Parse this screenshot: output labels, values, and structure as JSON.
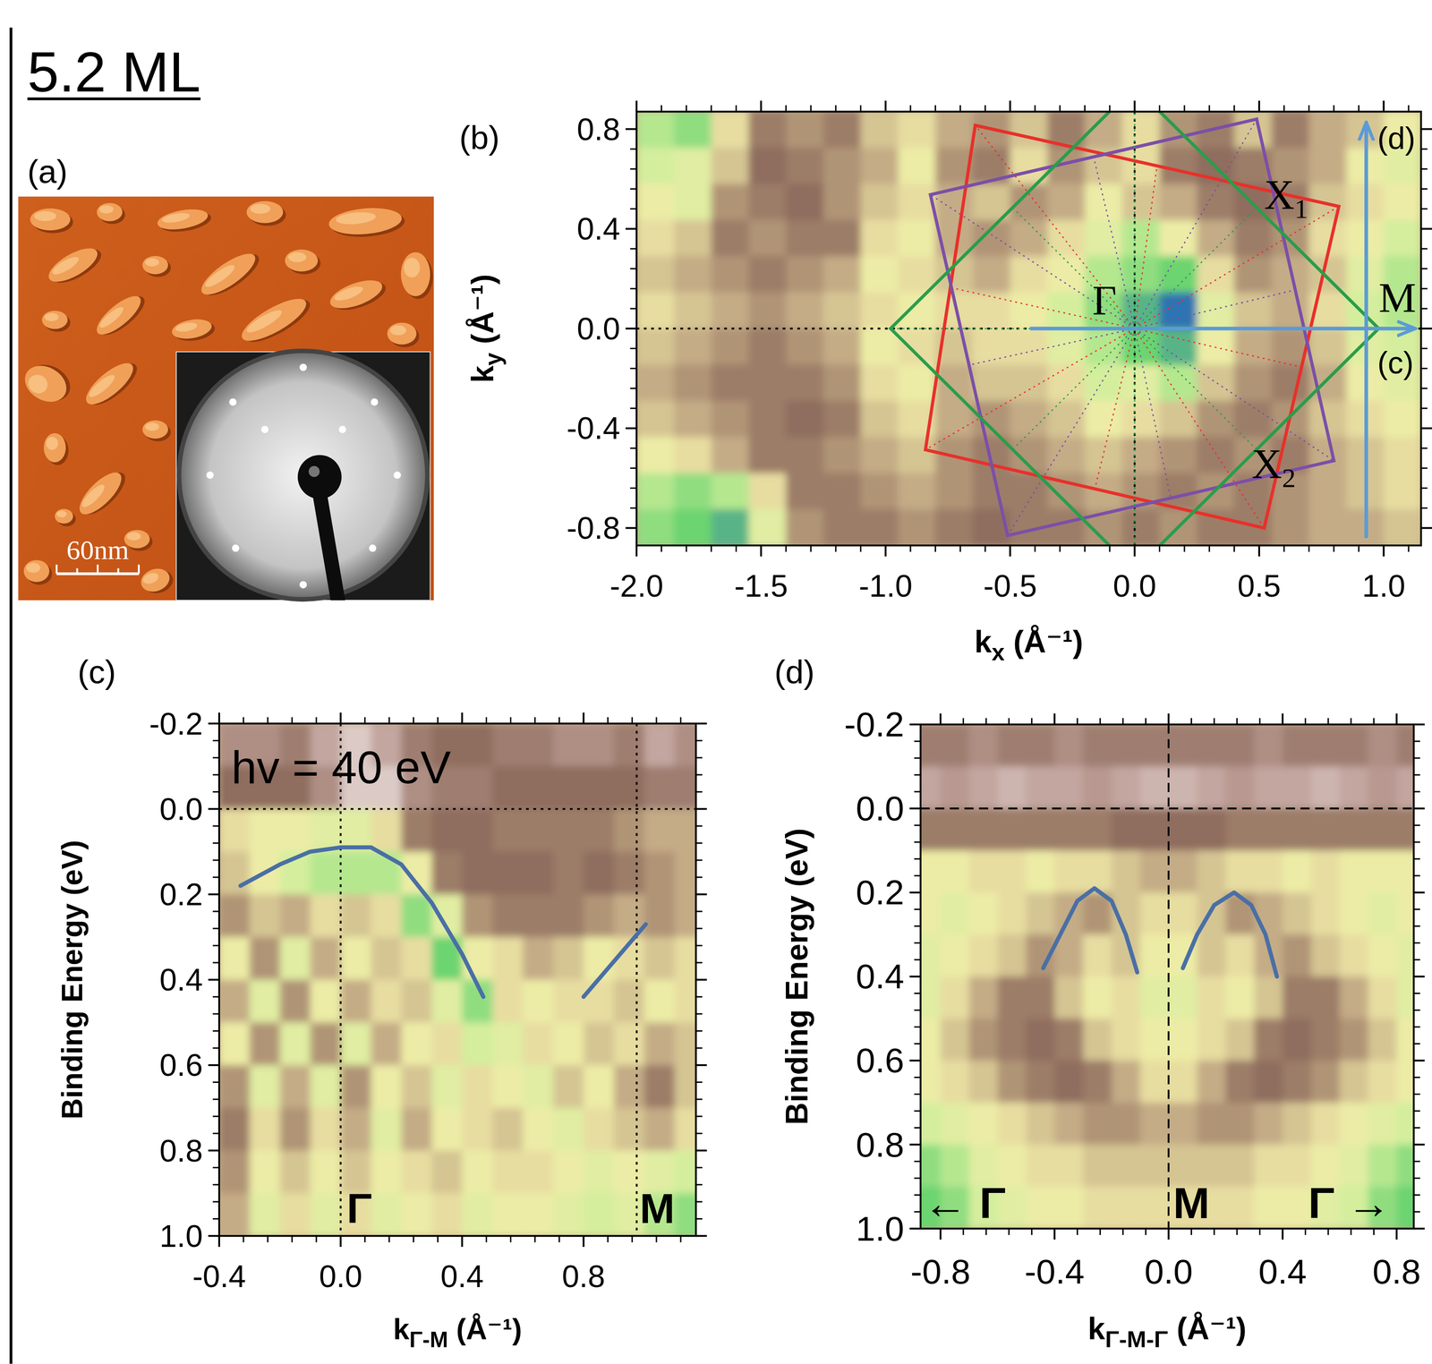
{
  "title": "5.2 ML",
  "chart_data": [
    {
      "type": "image",
      "panel": "(a)",
      "scale_bar": "60nm"
    },
    {
      "type": "heatmap",
      "panel": "(b)",
      "xlabel": "k",
      "xlabel_sub": "x",
      "xlabel_unit": "  (Å⁻¹)",
      "ylabel": "k",
      "ylabel_sub": "y",
      "ylabel_unit": "  (Å⁻¹)",
      "xlim": [
        -2.0,
        1.15
      ],
      "ylim": [
        -0.87,
        0.87
      ],
      "xticks": [
        {
          "value": -2,
          "label": "-2.0"
        },
        -1.5,
        {
          "value": -1,
          "label": "-1.0"
        },
        -0.5,
        {
          "value": 0,
          "label": "0.0"
        },
        0.5,
        {
          "value": 1,
          "label": "1.0"
        }
      ],
      "yticks": [
        -0.8,
        -0.4,
        {
          "value": 0,
          "label": "0.0"
        },
        0.4,
        0.8
      ],
      "x": [
        -1.925,
        -1.775,
        -1.625,
        -1.475,
        -1.325,
        -1.175,
        -1.025,
        -0.875,
        -0.725,
        -0.575,
        -0.425,
        -0.275,
        -0.125,
        0.025,
        0.175,
        0.325,
        0.475,
        0.625,
        0.775,
        0.925,
        1.075
      ],
      "y": [
        0.8,
        0.65,
        0.51,
        0.36,
        0.22,
        0.07,
        -0.07,
        -0.22,
        -0.36,
        -0.51,
        -0.65,
        -0.8
      ],
      "cells": [
        [
          0.7,
          0.75,
          0.5,
          0.3,
          0.35,
          0.3,
          0.45,
          0.5,
          0.4,
          0.35,
          0.45,
          0.3,
          0.4,
          0.5,
          0.35,
          0.3,
          0.45,
          0.3,
          0.4,
          0.45,
          0.55
        ],
        [
          0.65,
          0.6,
          0.45,
          0.25,
          0.3,
          0.35,
          0.4,
          0.55,
          0.35,
          0.3,
          0.5,
          0.35,
          0.45,
          0.5,
          0.3,
          0.25,
          0.3,
          0.35,
          0.4,
          0.55,
          0.6
        ],
        [
          0.55,
          0.6,
          0.35,
          0.3,
          0.25,
          0.35,
          0.45,
          0.5,
          0.4,
          0.45,
          0.35,
          0.4,
          0.55,
          0.45,
          0.4,
          0.3,
          0.25,
          0.3,
          0.45,
          0.5,
          0.55
        ],
        [
          0.5,
          0.45,
          0.3,
          0.35,
          0.3,
          0.3,
          0.5,
          0.55,
          0.4,
          0.35,
          0.4,
          0.5,
          0.6,
          0.7,
          0.55,
          0.4,
          0.3,
          0.35,
          0.5,
          0.55,
          0.65
        ],
        [
          0.45,
          0.4,
          0.35,
          0.3,
          0.35,
          0.4,
          0.55,
          0.5,
          0.45,
          0.4,
          0.5,
          0.55,
          0.7,
          0.75,
          0.8,
          0.5,
          0.35,
          0.4,
          0.45,
          0.6,
          0.7
        ],
        [
          0.5,
          0.45,
          0.4,
          0.35,
          0.4,
          0.45,
          0.5,
          0.55,
          0.5,
          0.5,
          0.55,
          0.65,
          0.75,
          0.85,
          0.95,
          0.6,
          0.45,
          0.4,
          0.5,
          0.65,
          0.7
        ],
        [
          0.45,
          0.4,
          0.35,
          0.3,
          0.35,
          0.4,
          0.55,
          0.5,
          0.45,
          0.5,
          0.5,
          0.6,
          0.7,
          0.8,
          0.85,
          0.55,
          0.4,
          0.35,
          0.45,
          0.6,
          0.65
        ],
        [
          0.4,
          0.35,
          0.3,
          0.3,
          0.3,
          0.35,
          0.5,
          0.55,
          0.4,
          0.45,
          0.45,
          0.5,
          0.65,
          0.6,
          0.7,
          0.45,
          0.35,
          0.3,
          0.4,
          0.55,
          0.6
        ],
        [
          0.45,
          0.4,
          0.35,
          0.3,
          0.25,
          0.3,
          0.45,
          0.5,
          0.4,
          0.35,
          0.4,
          0.45,
          0.55,
          0.5,
          0.45,
          0.35,
          0.3,
          0.35,
          0.45,
          0.5,
          0.55
        ],
        [
          0.55,
          0.5,
          0.4,
          0.3,
          0.3,
          0.35,
          0.4,
          0.45,
          0.35,
          0.3,
          0.35,
          0.4,
          0.45,
          0.4,
          0.35,
          0.3,
          0.35,
          0.3,
          0.4,
          0.45,
          0.5
        ],
        [
          0.7,
          0.75,
          0.7,
          0.5,
          0.3,
          0.3,
          0.35,
          0.4,
          0.35,
          0.3,
          0.3,
          0.35,
          0.4,
          0.35,
          0.3,
          0.35,
          0.3,
          0.35,
          0.4,
          0.45,
          0.5
        ],
        [
          0.75,
          0.8,
          0.85,
          0.6,
          0.35,
          0.3,
          0.3,
          0.35,
          0.3,
          0.25,
          0.3,
          0.3,
          0.35,
          0.3,
          0.35,
          0.3,
          0.3,
          0.35,
          0.4,
          0.4,
          0.45
        ]
      ],
      "vlines": [
        0
      ],
      "hlines": [
        0
      ],
      "polygons": [
        {
          "color": "#e8302a",
          "kx": [
            -0.64,
            0.82,
            0.52,
            -0.84
          ],
          "ky": [
            0.815,
            0.49,
            -0.8,
            -0.486
          ]
        },
        {
          "color": "#7b4fa8",
          "kx": [
            -0.82,
            0.49,
            0.8,
            -0.51
          ],
          "ky": [
            0.537,
            0.84,
            -0.53,
            -0.83
          ]
        },
        {
          "color": "#2a9d4a",
          "kx": [
            0,
            -0.98,
            0,
            0.98
          ],
          "ky": [
            0.97,
            0,
            -0.97,
            0
          ]
        }
      ],
      "arrows": [
        {
          "label": "(c)",
          "color": "#5b9bd5",
          "kx": [
            -0.42,
            1.12
          ],
          "ky": [
            0,
            0
          ],
          "label_kx": 0.975,
          "label_ky": -0.18
        },
        {
          "label": "(d)",
          "color": "#5b9bd5",
          "kx": [
            0.93,
            0.93
          ],
          "ky": [
            -0.84,
            0.82
          ],
          "label_kx": 0.975,
          "label_ky": 0.72
        }
      ],
      "labels": [
        {
          "text": "Γ",
          "x": -0.17,
          "y": 0.055
        },
        {
          "text": "X",
          "sub": "1",
          "x": 0.52,
          "y": 0.48
        },
        {
          "text": "X",
          "sub": "2",
          "x": 0.47,
          "y": -0.6
        },
        {
          "text": "M",
          "x": 0.98,
          "y": 0.066
        }
      ]
    },
    {
      "type": "heatmap",
      "panel": "(c)",
      "xlabel": "k",
      "xlabel_sub": "Γ-M",
      "xlabel_unit": "  (Å⁻¹)",
      "ylabel": "Binding Energy   (eV)",
      "xlim": [
        -0.4,
        1.17
      ],
      "ylim": [
        1.0,
        -0.2
      ],
      "xticks": [
        -0.4,
        {
          "value": 0,
          "label": "0.0"
        },
        0.4,
        0.8
      ],
      "yticks": [
        -0.2,
        {
          "value": 0,
          "label": "0.0"
        },
        0.2,
        0.4,
        0.6,
        0.8,
        {
          "value": 1,
          "label": "1.0"
        }
      ],
      "x": [
        -0.35,
        -0.25,
        -0.15,
        -0.05,
        0.05,
        0.15,
        0.25,
        0.35,
        0.45,
        0.55,
        0.65,
        0.75,
        0.85,
        0.95,
        1.05,
        1.15
      ],
      "y": [
        -0.15,
        -0.05,
        0.05,
        0.15,
        0.25,
        0.35,
        0.45,
        0.55,
        0.65,
        0.75,
        0.85,
        0.95
      ],
      "cells": [
        [
          0.15,
          0.15,
          0.2,
          0.1,
          0.05,
          0.1,
          0.2,
          0.25,
          0.25,
          0.2,
          0.2,
          0.15,
          0.15,
          0.2,
          0.1,
          0.15
        ],
        [
          0.25,
          0.25,
          0.25,
          0.15,
          0.05,
          0.05,
          0.15,
          0.2,
          0.2,
          0.25,
          0.25,
          0.25,
          0.25,
          0.25,
          0.2,
          0.2
        ],
        [
          0.5,
          0.55,
          0.55,
          0.6,
          0.6,
          0.5,
          0.3,
          0.25,
          0.25,
          0.3,
          0.3,
          0.3,
          0.3,
          0.35,
          0.4,
          0.4
        ],
        [
          0.45,
          0.55,
          0.65,
          0.7,
          0.7,
          0.7,
          0.55,
          0.3,
          0.25,
          0.25,
          0.25,
          0.3,
          0.25,
          0.3,
          0.35,
          0.4
        ],
        [
          0.35,
          0.45,
          0.4,
          0.5,
          0.45,
          0.5,
          0.75,
          0.6,
          0.35,
          0.3,
          0.3,
          0.3,
          0.35,
          0.4,
          0.35,
          0.4
        ],
        [
          0.55,
          0.35,
          0.6,
          0.4,
          0.55,
          0.45,
          0.5,
          0.8,
          0.55,
          0.5,
          0.4,
          0.45,
          0.55,
          0.5,
          0.45,
          0.5
        ],
        [
          0.4,
          0.6,
          0.35,
          0.55,
          0.4,
          0.5,
          0.45,
          0.6,
          0.75,
          0.5,
          0.55,
          0.5,
          0.5,
          0.45,
          0.55,
          0.5
        ],
        [
          0.55,
          0.35,
          0.6,
          0.35,
          0.6,
          0.4,
          0.55,
          0.5,
          0.65,
          0.6,
          0.5,
          0.55,
          0.45,
          0.5,
          0.4,
          0.45
        ],
        [
          0.35,
          0.6,
          0.4,
          0.6,
          0.35,
          0.55,
          0.45,
          0.6,
          0.5,
          0.55,
          0.6,
          0.45,
          0.55,
          0.4,
          0.3,
          0.45
        ],
        [
          0.3,
          0.5,
          0.35,
          0.5,
          0.4,
          0.6,
          0.4,
          0.55,
          0.5,
          0.45,
          0.55,
          0.6,
          0.5,
          0.45,
          0.4,
          0.5
        ],
        [
          0.35,
          0.55,
          0.45,
          0.55,
          0.45,
          0.55,
          0.5,
          0.45,
          0.55,
          0.5,
          0.5,
          0.55,
          0.6,
          0.55,
          0.6,
          0.65
        ],
        [
          0.4,
          0.6,
          0.5,
          0.6,
          0.5,
          0.6,
          0.55,
          0.5,
          0.6,
          0.55,
          0.55,
          0.6,
          0.65,
          0.6,
          0.7,
          0.75
        ]
      ],
      "vlines": [
        0,
        0.975
      ],
      "hlines": [
        0
      ],
      "series": [
        {
          "color": "#4a6fa5",
          "x": [
            -0.33,
            -0.2,
            -0.1,
            0.0,
            0.1,
            0.2,
            0.3,
            0.4,
            0.47
          ],
          "values": [
            0.18,
            0.13,
            0.1,
            0.09,
            0.09,
            0.13,
            0.22,
            0.34,
            0.44
          ]
        },
        {
          "color": "#4a6fa5",
          "x": [
            0.8,
            1.005
          ],
          "values": [
            0.44,
            0.27
          ]
        }
      ],
      "annotation": {
        "text": "hv = 40 eV",
        "x": -0.36,
        "y": -0.06
      },
      "labels": [
        {
          "text": "Γ",
          "x": 0.02,
          "y": 0.97
        },
        {
          "text": "M",
          "x": 0.985,
          "y": 0.97
        }
      ]
    },
    {
      "type": "heatmap",
      "panel": "(d)",
      "xlabel": "k",
      "xlabel_sub": "Γ-M-Γ",
      "xlabel_unit": "  (Å⁻¹)",
      "ylabel": "Binding Energy   (eV)",
      "xlim": [
        -0.87,
        0.86
      ],
      "ylim": [
        1.0,
        -0.2
      ],
      "xticks": [
        -0.8,
        -0.4,
        {
          "value": 0,
          "label": "0.0"
        },
        0.4,
        0.8
      ],
      "yticks": [
        -0.2,
        {
          "value": 0,
          "label": "0.0"
        },
        0.2,
        0.4,
        0.6,
        0.8,
        {
          "value": 1,
          "label": "1.0"
        }
      ],
      "x": [
        -0.85,
        -0.75,
        -0.65,
        -0.55,
        -0.45,
        -0.35,
        -0.25,
        -0.15,
        -0.05,
        0.05,
        0.15,
        0.25,
        0.35,
        0.45,
        0.55,
        0.65,
        0.75,
        0.85
      ],
      "y": [
        -0.15,
        -0.05,
        0.05,
        0.15,
        0.25,
        0.35,
        0.45,
        0.55,
        0.65,
        0.75,
        0.85,
        0.95
      ],
      "cells": [
        [
          0.2,
          0.2,
          0.15,
          0.2,
          0.2,
          0.15,
          0.2,
          0.2,
          0.2,
          0.2,
          0.2,
          0.2,
          0.15,
          0.2,
          0.2,
          0.2,
          0.15,
          0.2
        ],
        [
          0.1,
          0.12,
          0.1,
          0.08,
          0.1,
          0.1,
          0.12,
          0.1,
          0.08,
          0.08,
          0.1,
          0.12,
          0.1,
          0.1,
          0.08,
          0.1,
          0.12,
          0.1
        ],
        [
          0.3,
          0.3,
          0.3,
          0.3,
          0.3,
          0.3,
          0.3,
          0.25,
          0.25,
          0.25,
          0.25,
          0.3,
          0.3,
          0.3,
          0.3,
          0.3,
          0.3,
          0.3
        ],
        [
          0.55,
          0.55,
          0.5,
          0.5,
          0.55,
          0.5,
          0.5,
          0.45,
          0.4,
          0.4,
          0.45,
          0.5,
          0.5,
          0.55,
          0.5,
          0.55,
          0.55,
          0.55
        ],
        [
          0.55,
          0.6,
          0.55,
          0.5,
          0.45,
          0.4,
          0.35,
          0.45,
          0.5,
          0.5,
          0.45,
          0.35,
          0.4,
          0.45,
          0.5,
          0.55,
          0.6,
          0.55
        ],
        [
          0.6,
          0.55,
          0.5,
          0.45,
          0.35,
          0.4,
          0.5,
          0.45,
          0.55,
          0.55,
          0.45,
          0.5,
          0.4,
          0.35,
          0.45,
          0.5,
          0.55,
          0.6
        ],
        [
          0.6,
          0.5,
          0.4,
          0.3,
          0.3,
          0.45,
          0.55,
          0.5,
          0.6,
          0.6,
          0.5,
          0.55,
          0.45,
          0.3,
          0.3,
          0.4,
          0.5,
          0.6
        ],
        [
          0.55,
          0.45,
          0.35,
          0.3,
          0.25,
          0.3,
          0.45,
          0.5,
          0.55,
          0.55,
          0.5,
          0.45,
          0.3,
          0.25,
          0.3,
          0.35,
          0.45,
          0.55
        ],
        [
          0.55,
          0.5,
          0.45,
          0.35,
          0.3,
          0.25,
          0.3,
          0.4,
          0.5,
          0.5,
          0.4,
          0.3,
          0.25,
          0.3,
          0.35,
          0.45,
          0.5,
          0.55
        ],
        [
          0.65,
          0.6,
          0.55,
          0.5,
          0.45,
          0.4,
          0.35,
          0.35,
          0.4,
          0.4,
          0.35,
          0.35,
          0.4,
          0.45,
          0.5,
          0.55,
          0.6,
          0.65
        ],
        [
          0.75,
          0.7,
          0.6,
          0.55,
          0.5,
          0.5,
          0.45,
          0.45,
          0.45,
          0.45,
          0.45,
          0.45,
          0.5,
          0.5,
          0.55,
          0.6,
          0.7,
          0.75
        ],
        [
          0.8,
          0.75,
          0.65,
          0.6,
          0.55,
          0.55,
          0.5,
          0.5,
          0.5,
          0.5,
          0.5,
          0.5,
          0.55,
          0.55,
          0.6,
          0.65,
          0.75,
          0.8
        ]
      ],
      "vlines": [
        0
      ],
      "hlines": [
        0
      ],
      "series": [
        {
          "color": "#4a6fa5",
          "x": [
            -0.44,
            -0.38,
            -0.32,
            -0.26,
            -0.2,
            -0.15,
            -0.11
          ],
          "values": [
            0.38,
            0.3,
            0.22,
            0.19,
            0.22,
            0.3,
            0.39
          ]
        },
        {
          "color": "#4a6fa5",
          "x": [
            0.05,
            0.1,
            0.16,
            0.23,
            0.29,
            0.34,
            0.38
          ],
          "values": [
            0.38,
            0.3,
            0.23,
            0.2,
            0.23,
            0.3,
            0.4
          ]
        }
      ],
      "labels": [
        {
          "text": "← Γ",
          "x": -0.86,
          "y": 0.975
        },
        {
          "text": "M",
          "x": 0.016,
          "y": 0.975
        },
        {
          "text": "Γ →",
          "x": 0.49,
          "y": 0.975
        }
      ]
    }
  ]
}
